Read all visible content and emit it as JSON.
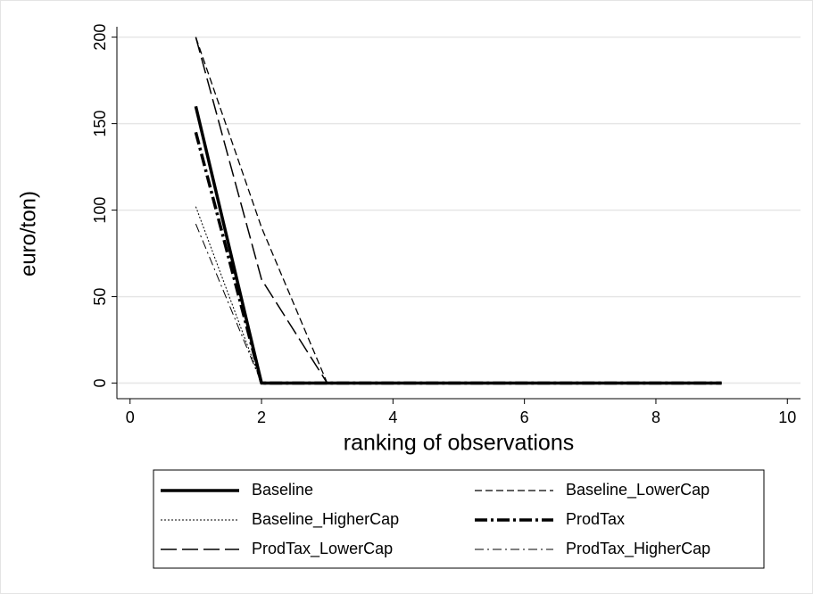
{
  "chart_data": {
    "type": "line",
    "y_label": "euro/ton)",
    "x_label": "ranking of observations",
    "x": [
      1,
      2,
      3,
      4,
      5,
      6,
      7,
      8,
      9
    ],
    "series": [
      {
        "name": "Baseline",
        "color": "#000000",
        "line_style": "thick-solid",
        "values": [
          160,
          0,
          0,
          0,
          0,
          0,
          0,
          0,
          0
        ]
      },
      {
        "name": "Baseline_LowerCap",
        "color": "#000000",
        "line_style": "short-dash",
        "values": [
          200,
          90,
          0,
          0,
          0,
          0,
          0,
          0,
          0
        ]
      },
      {
        "name": "Baseline_HigherCap",
        "color": "#000000",
        "line_style": "dot",
        "values": [
          102,
          0,
          0,
          0,
          0,
          0,
          0,
          0,
          0
        ]
      },
      {
        "name": "ProdTax",
        "color": "#000000",
        "line_style": "thick-dash-dot",
        "values": [
          145,
          0,
          0,
          0,
          0,
          0,
          0,
          0,
          0
        ]
      },
      {
        "name": "ProdTax_LowerCap",
        "color": "#000000",
        "line_style": "long-dash",
        "values": [
          200,
          60,
          0,
          0,
          0,
          0,
          0,
          0,
          0
        ]
      },
      {
        "name": "ProdTax_HigherCap",
        "color": "#000000",
        "line_style": "dash-dot",
        "values": [
          92,
          0,
          0,
          0,
          0,
          0,
          0,
          0,
          0
        ]
      }
    ],
    "xlim": [
      -0.2,
      10.2
    ],
    "ylim": [
      -9,
      206
    ],
    "xticks": [
      0,
      2,
      4,
      6,
      8,
      10
    ],
    "yticks": [
      0,
      50,
      100,
      150,
      200
    ],
    "grid": true
  }
}
